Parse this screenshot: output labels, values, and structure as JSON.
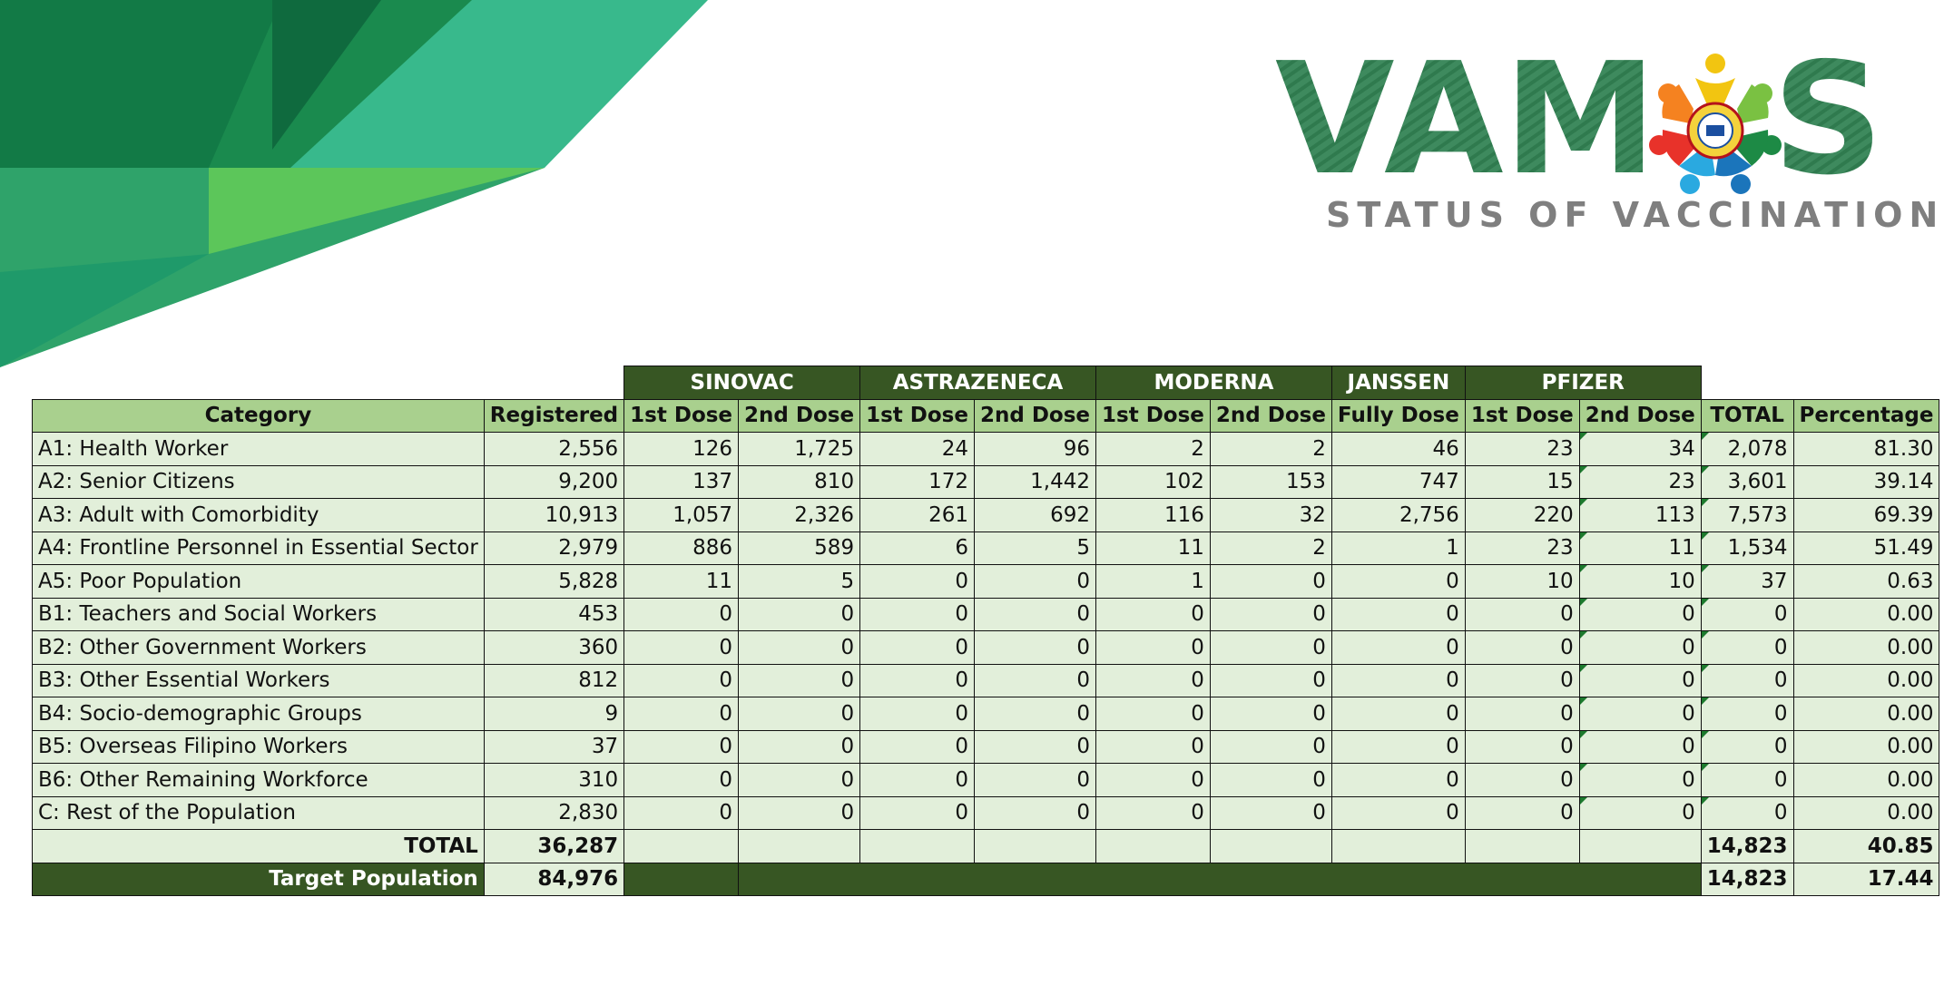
{
  "logo": {
    "wordmark_left": "VAM",
    "wordmark_right": "S",
    "subtitle": "STATUS OF VACCINATION"
  },
  "colors": {
    "header_dark_green": "#375623",
    "column_header_green": "#a9d08e",
    "cell_light_green": "#e2efda",
    "logo_green": "#3e8a5e",
    "logo_gray": "#7f7f7f"
  },
  "table": {
    "vaccines": [
      "SINOVAC",
      "ASTRAZENECA",
      "MODERNA",
      "JANSSEN",
      "PFIZER"
    ],
    "columns": [
      "Category",
      "Registered",
      "1st Dose",
      "2nd Dose",
      "1st Dose",
      "2nd Dose",
      "1st Dose",
      "2nd Dose",
      "Fully Dose",
      "1st Dose",
      "2nd Dose",
      "TOTAL",
      "Percentage"
    ],
    "rows": [
      [
        "A1: Health Worker",
        "2,556",
        "126",
        "1,725",
        "24",
        "96",
        "2",
        "2",
        "46",
        "23",
        "34",
        "2,078",
        "81.30"
      ],
      [
        "A2: Senior Citizens",
        "9,200",
        "137",
        "810",
        "172",
        "1,442",
        "102",
        "153",
        "747",
        "15",
        "23",
        "3,601",
        "39.14"
      ],
      [
        "A3: Adult with Comorbidity",
        "10,913",
        "1,057",
        "2,326",
        "261",
        "692",
        "116",
        "32",
        "2,756",
        "220",
        "113",
        "7,573",
        "69.39"
      ],
      [
        "A4: Frontline Personnel in Essential Sector",
        "2,979",
        "886",
        "589",
        "6",
        "5",
        "11",
        "2",
        "1",
        "23",
        "11",
        "1,534",
        "51.49"
      ],
      [
        "A5: Poor Population",
        "5,828",
        "11",
        "5",
        "0",
        "0",
        "1",
        "0",
        "0",
        "10",
        "10",
        "37",
        "0.63"
      ],
      [
        "B1: Teachers and Social Workers",
        "453",
        "0",
        "0",
        "0",
        "0",
        "0",
        "0",
        "0",
        "0",
        "0",
        "0",
        "0.00"
      ],
      [
        "B2: Other Government Workers",
        "360",
        "0",
        "0",
        "0",
        "0",
        "0",
        "0",
        "0",
        "0",
        "0",
        "0",
        "0.00"
      ],
      [
        "B3: Other Essential Workers",
        "812",
        "0",
        "0",
        "0",
        "0",
        "0",
        "0",
        "0",
        "0",
        "0",
        "0",
        "0.00"
      ],
      [
        "B4: Socio-demographic Groups",
        "9",
        "0",
        "0",
        "0",
        "0",
        "0",
        "0",
        "0",
        "0",
        "0",
        "0",
        "0.00"
      ],
      [
        "B5: Overseas Filipino Workers",
        "37",
        "0",
        "0",
        "0",
        "0",
        "0",
        "0",
        "0",
        "0",
        "0",
        "0",
        "0.00"
      ],
      [
        "B6: Other Remaining Workforce",
        "310",
        "0",
        "0",
        "0",
        "0",
        "0",
        "0",
        "0",
        "0",
        "0",
        "0",
        "0.00"
      ],
      [
        "C: Rest of the Population",
        "2,830",
        "0",
        "0",
        "0",
        "0",
        "0",
        "0",
        "0",
        "0",
        "0",
        "0",
        "0.00"
      ]
    ],
    "total_row": {
      "label": "TOTAL",
      "registered": "36,287",
      "total": "14,823",
      "percentage": "40.85"
    },
    "target_row": {
      "label": "Target Population",
      "value": "84,976",
      "total": "14,823",
      "percentage": "17.44"
    }
  }
}
